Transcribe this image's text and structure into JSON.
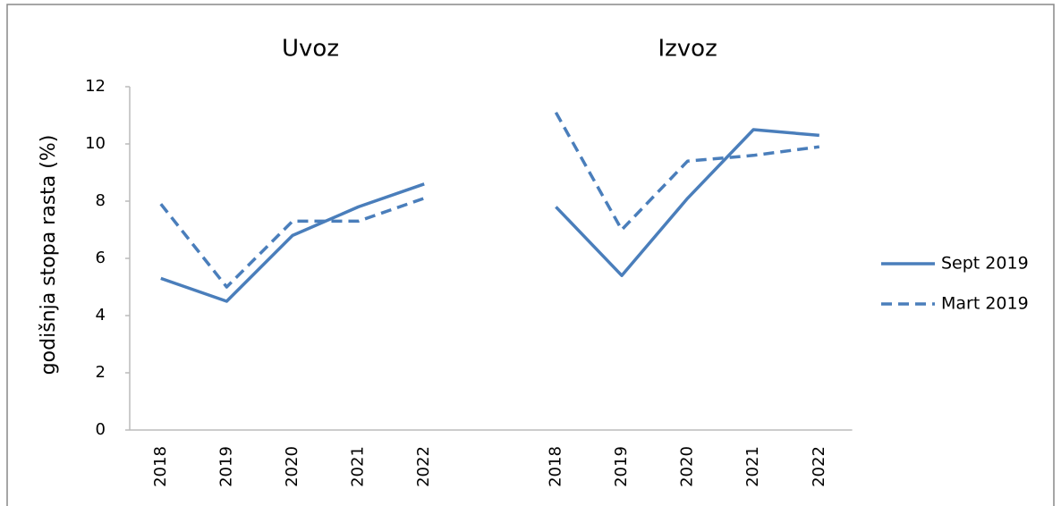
{
  "chart_data": {
    "type": "line",
    "annotations": [
      "Uvoz",
      "Izvoz"
    ],
    "ylabel": "godišnja stopa rasta (%)",
    "categories": [
      "2018",
      "2019",
      "2020",
      "2021",
      "2022",
      null,
      "2018",
      "2019",
      "2020",
      "2021",
      "2022"
    ],
    "series": [
      {
        "name": "Sept 2019",
        "color": "#4a7ebb",
        "dashed": false,
        "values": [
          5.3,
          4.5,
          6.8,
          7.8,
          8.6,
          null,
          7.8,
          5.4,
          8.1,
          10.5,
          10.3
        ]
      },
      {
        "name": "Mart 2019",
        "color": "#4a7ebb",
        "dashed": true,
        "values": [
          7.9,
          5.0,
          7.3,
          7.3,
          8.1,
          null,
          11.1,
          7.0,
          9.4,
          9.6,
          9.9
        ]
      }
    ],
    "ylim": [
      0,
      12
    ],
    "yticks": [
      0,
      2,
      4,
      6,
      8,
      10,
      12
    ],
    "grid": false,
    "legend": "right"
  }
}
